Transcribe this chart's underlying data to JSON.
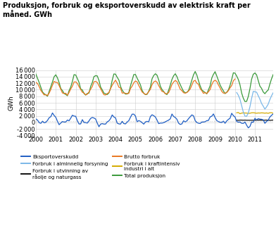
{
  "title_line1": "Produksjon, forbruk og eksportoverskudd av elektrisk kraft per",
  "title_line2": "måned. GWh",
  "ylabel": "GWh",
  "ylim": [
    -4000,
    16000
  ],
  "yticks": [
    -4000,
    -2000,
    0,
    2000,
    4000,
    6000,
    8000,
    10000,
    12000,
    14000,
    16000
  ],
  "xlim": [
    2000.0,
    2011.92
  ],
  "xticks": [
    2000,
    2001,
    2002,
    2003,
    2004,
    2005,
    2006,
    2007,
    2008,
    2009,
    2010,
    2011
  ],
  "colors": {
    "eksportoverskudd": "#1F5EC4",
    "forbruk_utvinning": "#111111",
    "forbruk_kraftintensiv": "#D4AA00",
    "forbruk_alminnelig": "#7BB8E8",
    "brutto_forbruk": "#E87820",
    "total_produksjon": "#3A9A3A"
  },
  "legend": [
    {
      "label": "Eksportoverskudd",
      "color": "#1F5EC4",
      "col": 0
    },
    {
      "label": "Forbruk i alminnelig forsyning",
      "color": "#7BB8E8",
      "col": 1
    },
    {
      "label": "Forbruk i utvinning av\nråolje og naturgass",
      "color": "#111111",
      "col": 0
    },
    {
      "label": "Brutto forbruk",
      "color": "#E87820",
      "col": 1
    },
    {
      "label": "Forbruk i kraftintensiv\nindustri i alt",
      "color": "#D4AA00",
      "col": 0
    },
    {
      "label": "Total produksjon",
      "color": "#3A9A3A",
      "col": 1
    }
  ],
  "hline_color": "#BBBBBB",
  "hline_y": 400,
  "background": "#FFFFFF"
}
